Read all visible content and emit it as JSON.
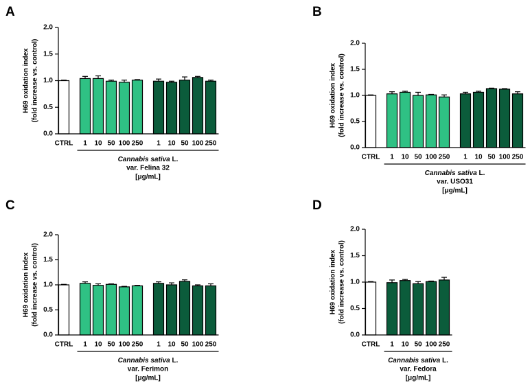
{
  "chart_data": [
    {
      "type": "bar",
      "panel": "A",
      "ylabel": [
        "H69 oxidation index",
        "(fold increase vs. control)"
      ],
      "xlabel": [
        [
          "Cannabis sativa",
          " L."
        ],
        "var. Felina 32",
        "[μg/mL]"
      ],
      "categories": [
        "CTRL",
        "1",
        "10",
        "50",
        "100",
        "250",
        "1",
        "10",
        "50",
        "100",
        "250"
      ],
      "values": [
        1.0,
        1.04,
        1.04,
        0.99,
        0.97,
        1.01,
        0.99,
        0.97,
        1.01,
        1.06,
        0.99
      ],
      "errors": [
        0.01,
        0.04,
        0.05,
        0.02,
        0.04,
        0.01,
        0.04,
        0.02,
        0.06,
        0.02,
        0.02
      ],
      "colors": [
        "#ffffff",
        "#2fc184",
        "#2fc184",
        "#2fc184",
        "#2fc184",
        "#2fc184",
        "#0b5c3b",
        "#0b5c3b",
        "#0b5c3b",
        "#0b5c3b",
        "#0b5c3b"
      ],
      "ylim": [
        0,
        2
      ],
      "yticks": [
        {
          "value": 0,
          "label": "0.0"
        },
        {
          "value": 0.5,
          "label": "0.5"
        },
        {
          "value": 1,
          "label": "1.0"
        },
        {
          "value": 1.5,
          "label": "1.5"
        },
        {
          "value": 2,
          "label": "2.0"
        }
      ]
    },
    {
      "type": "bar",
      "panel": "B",
      "ylabel": [
        "H69 oxidation index",
        "(fold increase vs. control)"
      ],
      "xlabel": [
        [
          "Cannabis sativa",
          " L."
        ],
        "var. USO31",
        "[μg/mL]"
      ],
      "categories": [
        "CTRL",
        "1",
        "10",
        "50",
        "100",
        "250",
        "1",
        "10",
        "50",
        "100",
        "250"
      ],
      "values": [
        1.0,
        1.03,
        1.06,
        1.0,
        1.01,
        0.97,
        1.03,
        1.06,
        1.13,
        1.12,
        1.03
      ],
      "errors": [
        0.01,
        0.04,
        0.02,
        0.06,
        0.01,
        0.04,
        0.03,
        0.02,
        0.01,
        0.01,
        0.04
      ],
      "colors": [
        "#ffffff",
        "#2fc184",
        "#2fc184",
        "#2fc184",
        "#2fc184",
        "#2fc184",
        "#0b5c3b",
        "#0b5c3b",
        "#0b5c3b",
        "#0b5c3b",
        "#0b5c3b"
      ],
      "ylim": [
        0,
        2
      ],
      "yticks": [
        {
          "value": 0,
          "label": "0.0"
        },
        {
          "value": 0.5,
          "label": "0.5"
        },
        {
          "value": 1,
          "label": "1.0"
        },
        {
          "value": 1.5,
          "label": "1.5"
        },
        {
          "value": 2,
          "label": "2.0"
        }
      ]
    },
    {
      "type": "bar",
      "panel": "C",
      "ylabel": [
        "H69 oxidation index",
        "(fold increase vs. control)"
      ],
      "xlabel": [
        [
          "Cannabis sativa",
          " L."
        ],
        "var. Ferimon",
        "[μg/mL]"
      ],
      "categories": [
        "CTRL",
        "1",
        "10",
        "50",
        "100",
        "250",
        "1",
        "10",
        "50",
        "100",
        "250"
      ],
      "values": [
        1.0,
        1.03,
        0.99,
        1.01,
        0.96,
        0.98,
        1.03,
        1.0,
        1.07,
        0.98,
        0.98
      ],
      "errors": [
        0.01,
        0.03,
        0.03,
        0.01,
        0.01,
        0.01,
        0.03,
        0.04,
        0.03,
        0.02,
        0.04
      ],
      "colors": [
        "#ffffff",
        "#2fc184",
        "#2fc184",
        "#2fc184",
        "#2fc184",
        "#2fc184",
        "#0b5c3b",
        "#0b5c3b",
        "#0b5c3b",
        "#0b5c3b",
        "#0b5c3b"
      ],
      "ylim": [
        0,
        2
      ],
      "yticks": [
        {
          "value": 0,
          "label": "0.0"
        },
        {
          "value": 0.5,
          "label": "0.5"
        },
        {
          "value": 1,
          "label": "1.0"
        },
        {
          "value": 1.5,
          "label": "1.5"
        },
        {
          "value": 2,
          "label": "2.0"
        }
      ]
    },
    {
      "type": "bar",
      "panel": "D",
      "ylabel": [
        "H69 oxidation index",
        "(fold increase vs. control)"
      ],
      "xlabel": [
        [
          "Cannabis sativa",
          " L."
        ],
        "var. Fedora",
        "[μg/mL]"
      ],
      "categories": [
        "CTRL",
        "1",
        "10",
        "50",
        "100",
        "250"
      ],
      "values": [
        1.0,
        0.99,
        1.03,
        0.97,
        1.01,
        1.04
      ],
      "errors": [
        0.01,
        0.05,
        0.02,
        0.04,
        0.01,
        0.05
      ],
      "colors": [
        "#ffffff",
        "#0b5c3b",
        "#0b5c3b",
        "#0b5c3b",
        "#0b5c3b",
        "#0b5c3b"
      ],
      "ylim": [
        0,
        2
      ],
      "yticks": [
        {
          "value": 0,
          "label": "0.0"
        },
        {
          "value": 0.5,
          "label": "0.5"
        },
        {
          "value": 1,
          "label": "1.0"
        },
        {
          "value": 1.5,
          "label": "1.5"
        },
        {
          "value": 2,
          "label": "2.0"
        }
      ]
    }
  ]
}
